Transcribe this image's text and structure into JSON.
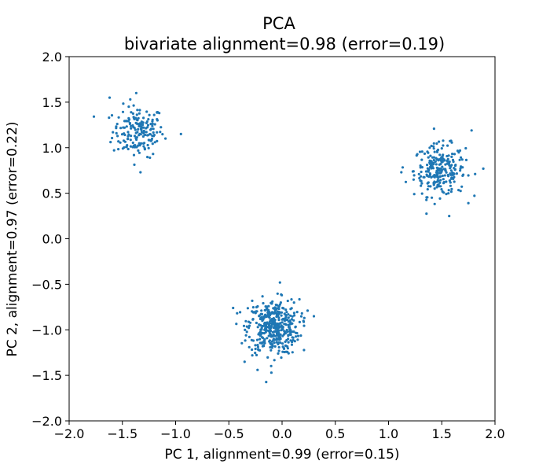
{
  "chart_data": {
    "type": "scatter",
    "title_line1": "PCA",
    "title_line2": "bivariate alignment=0.98 (error=0.19)",
    "xlabel": "PC 1, alignment=0.99 (error=0.15)",
    "ylabel": "PC 2, alignment=0.97 (error=0.22)",
    "xlim": [
      -2.0,
      2.0
    ],
    "ylim": [
      -2.0,
      2.0
    ],
    "x_ticks": [
      "−2.0",
      "−1.5",
      "−1.0",
      "−0.5",
      "0.0",
      "0.5",
      "1.0",
      "1.5",
      "2.0"
    ],
    "y_ticks": [
      "−2.0",
      "−1.5",
      "−1.0",
      "−0.5",
      "0.0",
      "0.5",
      "1.0",
      "1.5",
      "2.0"
    ],
    "grid": false,
    "legend": "none",
    "point_color": "#1f77b4",
    "clusters": [
      {
        "center": [
          -1.35,
          1.18
        ],
        "spread": [
          0.12,
          0.14
        ],
        "count": 180
      },
      {
        "center": [
          1.48,
          0.75
        ],
        "spread": [
          0.12,
          0.14
        ],
        "count": 250
      },
      {
        "center": [
          -0.08,
          -0.97
        ],
        "spread": [
          0.12,
          0.15
        ],
        "count": 420
      }
    ],
    "points_sample": [
      [
        -1.62,
        1.55
      ],
      [
        -0.95,
        1.15
      ],
      [
        -1.33,
        0.73
      ],
      [
        -1.37,
        1.6
      ],
      [
        1.89,
        0.77
      ],
      [
        1.12,
        0.73
      ],
      [
        1.57,
        0.25
      ],
      [
        1.78,
        1.19
      ],
      [
        -0.46,
        -0.76
      ],
      [
        0.24,
        -0.79
      ],
      [
        -0.23,
        -1.44
      ],
      [
        -0.1,
        -1.47
      ],
      [
        -0.02,
        -0.48
      ]
    ]
  }
}
